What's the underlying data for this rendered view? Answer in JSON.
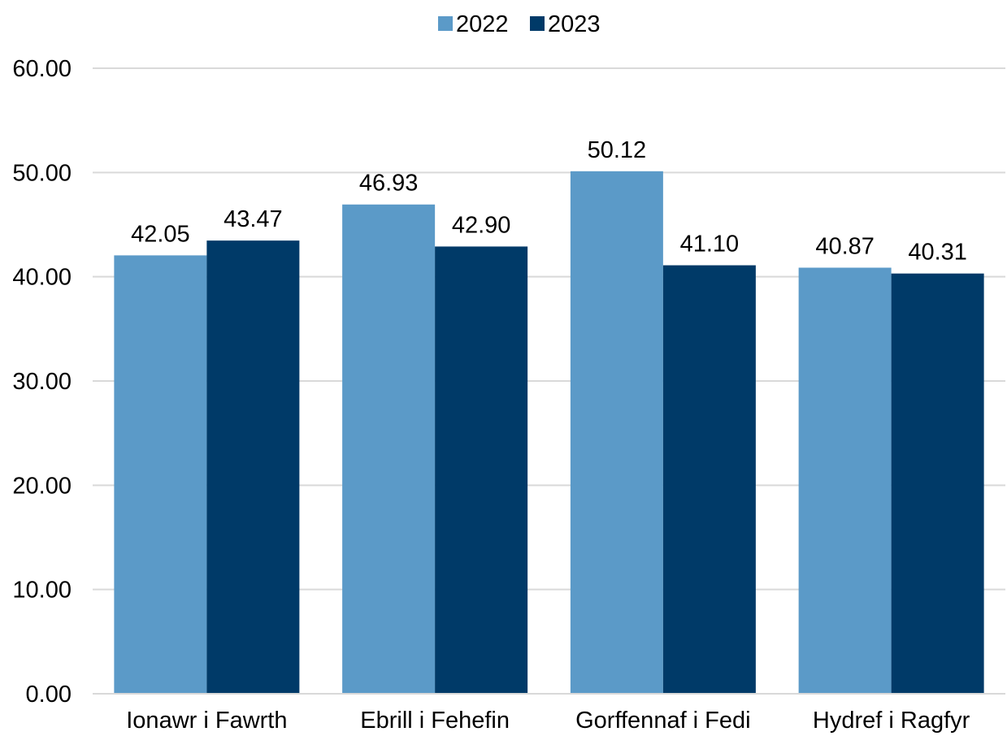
{
  "chart_data": {
    "type": "bar",
    "categories": [
      "Ionawr i Fawrth",
      "Ebrill i Fehefin",
      "Gorffennaf i Fedi",
      "Hydref i Ragfyr"
    ],
    "series": [
      {
        "name": "2022",
        "values": [
          42.05,
          46.93,
          50.12,
          40.87
        ],
        "labels": [
          "42.05",
          "46.93",
          "50.12",
          "40.87"
        ],
        "color": "#5b9ac8"
      },
      {
        "name": "2023",
        "values": [
          43.47,
          42.9,
          41.1,
          40.31
        ],
        "labels": [
          "43.47",
          "42.90",
          "41.10",
          "40.31"
        ],
        "color": "#003a68"
      }
    ],
    "y_ticks": [
      "0.00",
      "10.00",
      "20.00",
      "30.00",
      "40.00",
      "50.00",
      "60.00"
    ],
    "ylim": [
      0,
      60
    ],
    "grid": true,
    "gridline_color": "#d9d9d9",
    "legend_position": "top"
  }
}
